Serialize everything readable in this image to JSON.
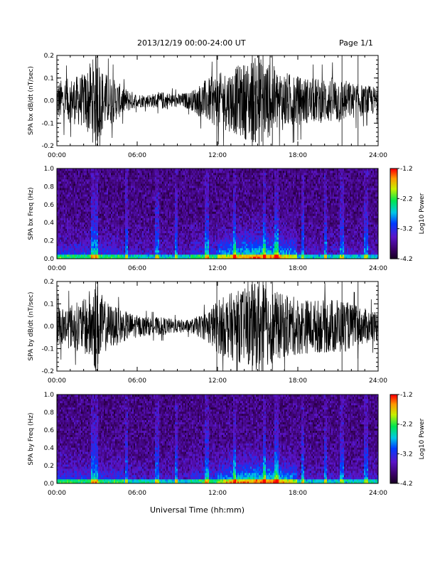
{
  "header": {
    "title": "2013/12/19  00:00-24:00 UT",
    "page": "Page 1/1"
  },
  "xlabel": "Universal Time (hh:mm)",
  "chart_data": [
    {
      "type": "line",
      "ylabel": "SPA bx dB/dt (nT/sec)",
      "xlim": [
        0,
        24
      ],
      "ylim": [
        -0.2,
        0.2
      ],
      "xticks": [
        "00:00",
        "06:00",
        "12:00",
        "18:00",
        "24:00"
      ],
      "yticks": [
        "-0.2",
        "-0.1",
        "0.0",
        "0.1",
        "0.2"
      ],
      "envelope": {
        "hours": [
          0,
          1,
          2,
          2.8,
          3,
          3.5,
          4,
          5,
          6,
          7,
          8,
          9,
          10,
          11,
          12,
          13,
          14,
          15,
          16,
          17,
          18,
          19,
          20,
          21,
          22,
          23,
          24
        ],
        "amplitude": [
          0.09,
          0.1,
          0.12,
          0.2,
          0.2,
          0.13,
          0.11,
          0.06,
          0.03,
          0.03,
          0.04,
          0.03,
          0.04,
          0.09,
          0.12,
          0.14,
          0.17,
          0.2,
          0.16,
          0.13,
          0.11,
          0.1,
          0.1,
          0.11,
          0.08,
          0.07,
          0.06
        ]
      }
    },
    {
      "type": "heatmap",
      "ylabel": "SPA bx Freq (Hz)",
      "xlim": [
        0,
        24
      ],
      "ylim": [
        0,
        1.0
      ],
      "xticks": [
        "00:00",
        "06:00",
        "12:00",
        "18:00",
        "24:00"
      ],
      "yticks": [
        "0.0",
        "0.2",
        "0.4",
        "0.6",
        "0.8",
        "1.0"
      ],
      "colorbar": {
        "label": "Log10 Power",
        "min": -4.2,
        "max": -1.2,
        "ticks": [
          "-1.2",
          "-2.2",
          "-3.2",
          "-4.2"
        ]
      }
    },
    {
      "type": "line",
      "ylabel": "SPA by dB/dt (nT/sec)",
      "xlim": [
        0,
        24
      ],
      "ylim": [
        -0.2,
        0.2
      ],
      "xticks": [
        "00:00",
        "06:00",
        "12:00",
        "18:00",
        "24:00"
      ],
      "yticks": [
        "-0.2",
        "-0.1",
        "0.0",
        "0.1",
        "0.2"
      ],
      "envelope": {
        "hours": [
          0,
          1,
          2,
          2.8,
          3,
          3.5,
          4,
          5,
          6,
          7,
          8,
          9,
          10,
          11,
          12,
          13,
          14,
          15,
          16,
          17,
          18,
          19,
          20,
          21,
          22,
          23,
          24
        ],
        "amplitude": [
          0.09,
          0.1,
          0.12,
          0.2,
          0.2,
          0.12,
          0.1,
          0.07,
          0.05,
          0.04,
          0.04,
          0.03,
          0.03,
          0.06,
          0.12,
          0.15,
          0.17,
          0.2,
          0.17,
          0.14,
          0.13,
          0.12,
          0.12,
          0.13,
          0.1,
          0.08,
          0.07
        ]
      }
    },
    {
      "type": "heatmap",
      "ylabel": "SPA by Freq (Hz)",
      "xlim": [
        0,
        24
      ],
      "ylim": [
        0,
        1.0
      ],
      "xticks": [
        "00:00",
        "06:00",
        "12:00",
        "18:00",
        "24:00"
      ],
      "yticks": [
        "0.0",
        "0.2",
        "0.4",
        "0.6",
        "0.8",
        "1.0"
      ],
      "colorbar": {
        "label": "Log10 Power",
        "min": -4.2,
        "max": -1.2,
        "ticks": [
          "-1.2",
          "-2.2",
          "-3.2",
          "-4.2"
        ]
      }
    }
  ]
}
